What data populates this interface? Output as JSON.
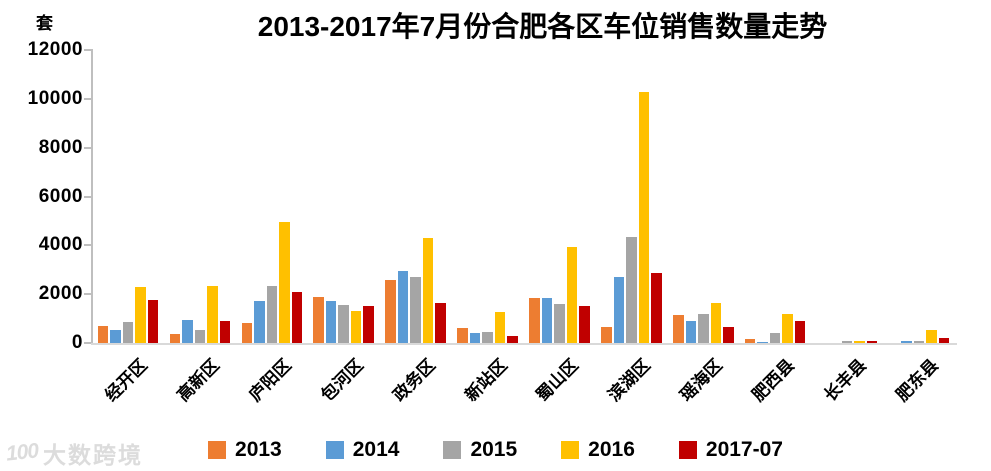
{
  "title": "2013-2017年7月份合肥各区车位销售数量走势",
  "y_axis": {
    "unit_label": "套",
    "min": 0,
    "max": 12000,
    "tick_step": 2000,
    "tick_labels": [
      "0",
      "2000",
      "4000",
      "6000",
      "8000",
      "10000",
      "12000"
    ]
  },
  "legend": [
    "2013",
    "2014",
    "2015",
    "2016",
    "2017-07"
  ],
  "watermark": {
    "logo": "100",
    "text": "大数跨境"
  },
  "colors": {
    "s2013": "#ED7D31",
    "s2014": "#5B9BD5",
    "s2015": "#A5A5A5",
    "s2016": "#FFC000",
    "s2017": "#C00000",
    "y_axis_line": "#bfbfbf",
    "x_axis_line": "#d9d9d9",
    "watermark_text": "#dcdcdc"
  },
  "chart_data": {
    "type": "bar",
    "title": "2013-2017年7月份合肥各区车位销售数量走势",
    "xlabel": "",
    "ylabel": "套",
    "ylim": [
      0,
      12000
    ],
    "grid": false,
    "legend_position": "bottom",
    "categories": [
      "经开区",
      "高新区",
      "庐阳区",
      "包河区",
      "政务区",
      "新站区",
      "蜀山区",
      "滨湖区",
      "瑶海区",
      "肥西县",
      "长丰县",
      "肥东县"
    ],
    "series": [
      {
        "name": "2013",
        "color": "#ED7D31",
        "values": [
          700,
          350,
          800,
          1900,
          2600,
          600,
          1850,
          650,
          1150,
          150,
          0,
          0
        ]
      },
      {
        "name": "2014",
        "color": "#5B9BD5",
        "values": [
          550,
          950,
          1700,
          1700,
          2950,
          400,
          1850,
          2700,
          900,
          50,
          0,
          100
        ]
      },
      {
        "name": "2015",
        "color": "#A5A5A5",
        "values": [
          850,
          550,
          2350,
          1550,
          2700,
          450,
          1600,
          4350,
          1200,
          400,
          100,
          100
        ]
      },
      {
        "name": "2016",
        "color": "#FFC000",
        "values": [
          2300,
          2350,
          4950,
          1300,
          4300,
          1250,
          3950,
          10300,
          1650,
          1200,
          100,
          550
        ]
      },
      {
        "name": "2017-07",
        "color": "#C00000",
        "values": [
          1750,
          900,
          2100,
          1500,
          1650,
          300,
          1500,
          2850,
          650,
          900,
          100,
          200
        ]
      }
    ]
  }
}
